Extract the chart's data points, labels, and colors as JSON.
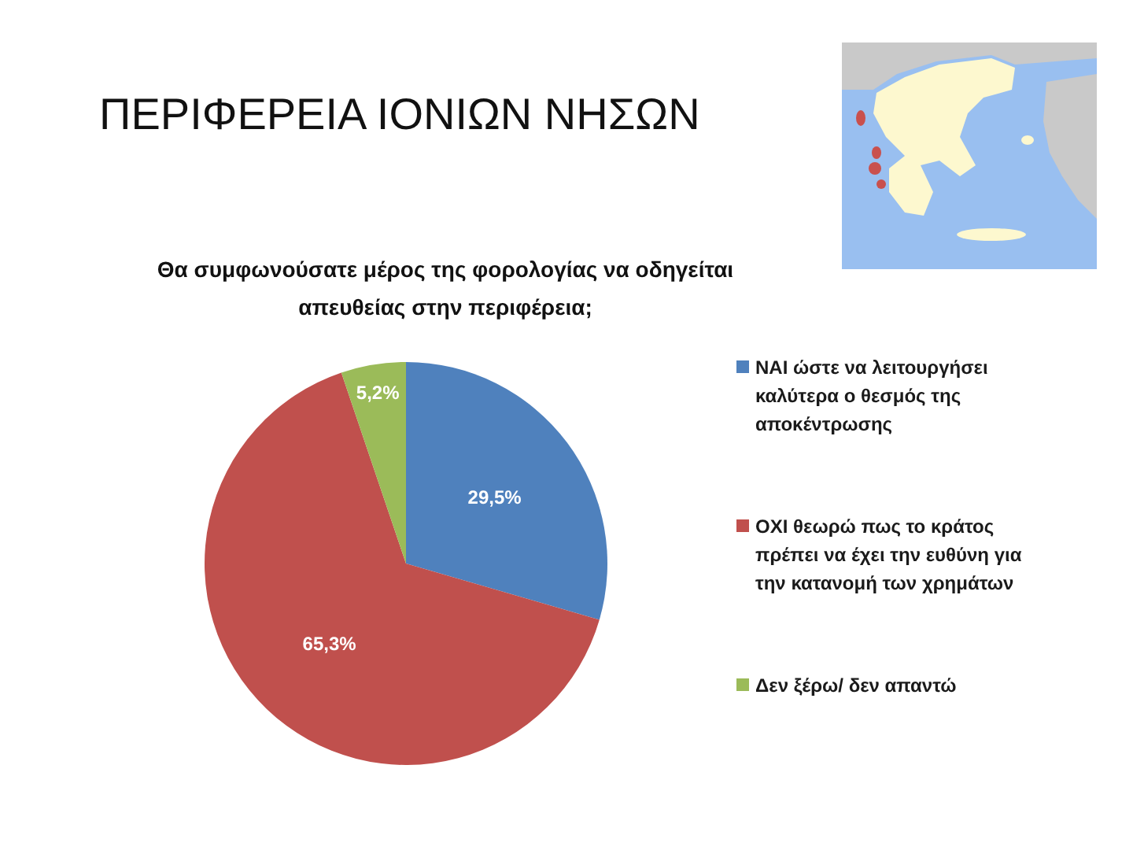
{
  "chart_data": {
    "type": "pie",
    "title": "ΠΕΡΙΦΕΡΕΙΑ ΙΟΝΙΩΝ ΝΗΣΩΝ",
    "subtitle": "Θα συμφωνούσατε μέρος της φορολογίας να οδηγείται απευθείας στην περιφέρεια;",
    "categories": [
      "ΝΑΙ ώστε να λειτουργήσει καλύτερα ο θεσμός της αποκέντρωσης",
      "ΟΧΙ θεωρώ πως το κράτος πρέπει να έχει την ευθύνη για την κατανομή των χρημάτων",
      "Δεν ξέρω/ δεν απαντώ"
    ],
    "values": [
      29.5,
      65.3,
      5.2
    ],
    "colors": [
      "#4f81bd",
      "#c0504d",
      "#9bbb59"
    ],
    "value_labels": [
      "29,5%",
      "65,3%",
      "5,2%"
    ],
    "legend": "right"
  }
}
